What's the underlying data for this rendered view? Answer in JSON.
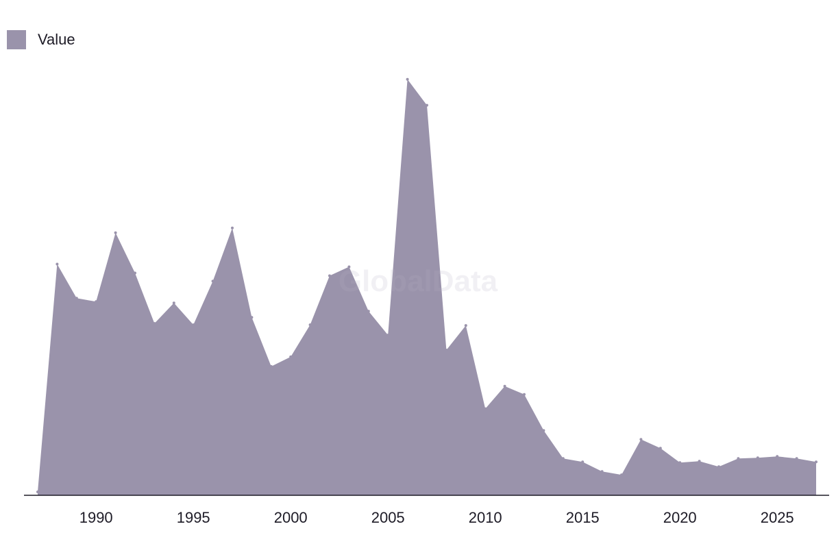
{
  "legend": {
    "label": "Value"
  },
  "watermark": "GlobalData",
  "colors": {
    "area": "#9a93ab",
    "axis": "#1d1b26",
    "text": "#1d1b26"
  },
  "chart_data": {
    "type": "area",
    "series": [
      {
        "name": "Value",
        "x": [
          1987,
          1988,
          1989,
          1990,
          1991,
          1992,
          1993,
          1994,
          1995,
          1996,
          1997,
          1998,
          1999,
          2000,
          2001,
          2002,
          2003,
          2004,
          2005,
          2006,
          2007,
          2008,
          2009,
          2010,
          2011,
          2012,
          2013,
          2014,
          2015,
          2016,
          2017,
          2018,
          2019,
          2020,
          2021,
          2022,
          2023,
          2024,
          2025,
          2026,
          2027
        ],
        "values": [
          0.5,
          33.9,
          28.9,
          28.4,
          38.5,
          32.6,
          25.2,
          28.2,
          25.0,
          31.4,
          39.2,
          26.1,
          18.9,
          20.3,
          25.0,
          32.2,
          33.5,
          27.0,
          23.5,
          61.0,
          57.2,
          21.3,
          24.9,
          12.7,
          16.0,
          14.8,
          9.5,
          5.4,
          4.9,
          3.5,
          3.0,
          8.2,
          6.9,
          4.8,
          5.0,
          4.2,
          5.4,
          5.5,
          5.7,
          5.4,
          4.9
        ]
      }
    ],
    "x_ticks": [
      1990,
      1995,
      2000,
      2005,
      2010,
      2015,
      2020,
      2025
    ],
    "xlim": [
      1986.3,
      2027.6
    ],
    "ylim": [
      0,
      66
    ],
    "grid": false,
    "legend_position": "top-left",
    "title": "",
    "xlabel": "",
    "ylabel": ""
  }
}
